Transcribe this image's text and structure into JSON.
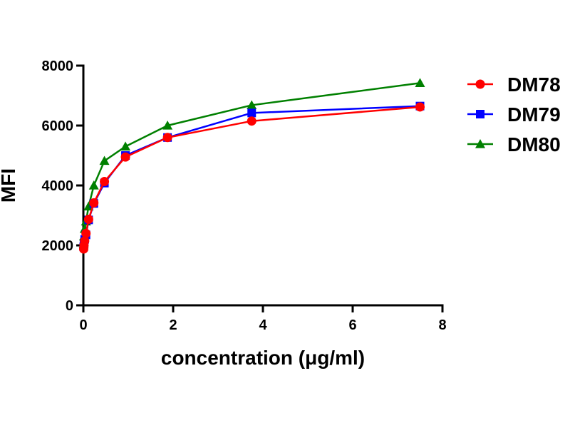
{
  "chart_data": {
    "type": "line",
    "title": "",
    "xlabel": "concentration (μg/ml)",
    "ylabel": "MFI",
    "xlim": [
      0,
      8
    ],
    "ylim": [
      0,
      8000
    ],
    "xticks": [
      "0",
      "2",
      "4",
      "6",
      "8"
    ],
    "yticks": [
      "0",
      "2000",
      "4000",
      "6000",
      "8000"
    ],
    "grid": false,
    "legend_position": "right",
    "series": [
      {
        "name": "DM78",
        "color": "#ff0000",
        "marker": "circle",
        "x": [
          0.0073,
          0.0146,
          0.0293,
          0.0586,
          0.117,
          0.234,
          0.469,
          0.9375,
          1.875,
          3.75,
          7.5
        ],
        "y": [
          1880,
          2000,
          2150,
          2400,
          2870,
          3420,
          4130,
          4950,
          5600,
          6150,
          6620
        ]
      },
      {
        "name": "DM79",
        "color": "#0000ff",
        "marker": "square",
        "x": [
          0.0073,
          0.0146,
          0.0293,
          0.0586,
          0.117,
          0.234,
          0.469,
          0.9375,
          1.875,
          3.75,
          7.5
        ],
        "y": [
          1950,
          2050,
          2200,
          2350,
          2850,
          3400,
          4080,
          5000,
          5600,
          6420,
          6650
        ]
      },
      {
        "name": "DM80",
        "color": "#008000",
        "marker": "triangle",
        "x": [
          0.0073,
          0.0146,
          0.0293,
          0.0586,
          0.117,
          0.234,
          0.469,
          0.9375,
          1.875,
          3.75,
          7.5
        ],
        "y": [
          2050,
          2300,
          2550,
          2800,
          3300,
          4000,
          4820,
          5300,
          6000,
          6680,
          7420
        ]
      }
    ]
  }
}
